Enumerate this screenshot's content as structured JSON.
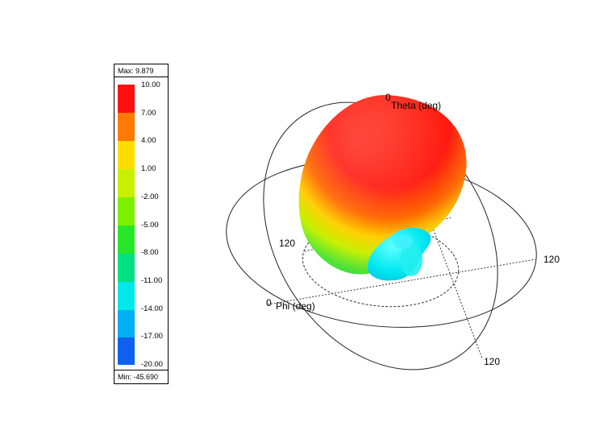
{
  "legend": {
    "max_label": "Max: 9.879",
    "min_label": "Min: -45.690",
    "ticks": [
      "10.00",
      "7.00",
      "4.00",
      "1.00",
      "-2.00",
      "-5.00",
      "-8.00",
      "-11.00",
      "-14.00",
      "-17.00",
      "-20.00"
    ],
    "colors": [
      "#ff1010",
      "#ff7a00",
      "#ffdd00",
      "#c8f000",
      "#7cf000",
      "#28e628",
      "#00e082",
      "#00e8e8",
      "#00b0f0",
      "#1060f0",
      "#0010f0"
    ]
  },
  "plot": {
    "theta_label": "Theta (deg)",
    "phi_label": "Phi (deg)",
    "theta_zero": "0",
    "phi_zero": "0",
    "tick_120_left": "120",
    "tick_120_right": "120",
    "tick_120_bottom": "120"
  }
}
